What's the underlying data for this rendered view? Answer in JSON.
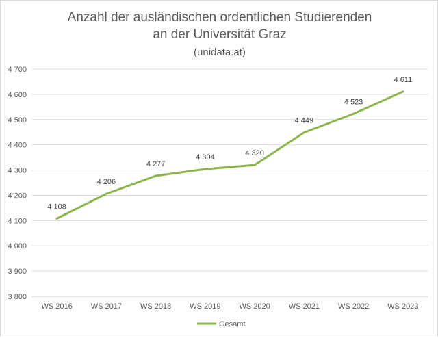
{
  "chart_data": {
    "type": "line",
    "title_lines": [
      "Anzahl der ausländischen ordentlichen Studierenden",
      "an der Universität Graz"
    ],
    "subtitle": "(unidata.at)",
    "categories": [
      "WS 2016",
      "WS 2017",
      "WS 2018",
      "WS 2019",
      "WS 2020",
      "WS 2021",
      "WS 2022",
      "WS 2023"
    ],
    "series": [
      {
        "name": "Gesamt",
        "values": [
          4108,
          4206,
          4277,
          4304,
          4320,
          4449,
          4523,
          4611
        ],
        "labels": [
          "4 108",
          "4 206",
          "4 277",
          "4 304",
          "4 320",
          "4 449",
          "4 523",
          "4 611"
        ],
        "color": "#8db44a"
      }
    ],
    "yticks": [
      {
        "value": 3800,
        "label": "3 800"
      },
      {
        "value": 3900,
        "label": "3 900"
      },
      {
        "value": 4000,
        "label": "4 000"
      },
      {
        "value": 4100,
        "label": "4 100"
      },
      {
        "value": 4200,
        "label": "4 200"
      },
      {
        "value": 4300,
        "label": "4 300"
      },
      {
        "value": 4400,
        "label": "4 400"
      },
      {
        "value": 4500,
        "label": "4 500"
      },
      {
        "value": 4600,
        "label": "4 600"
      },
      {
        "value": 4700,
        "label": "4 700"
      }
    ],
    "ylim": [
      3800,
      4700
    ],
    "grid": true,
    "legend_position": "bottom",
    "xlabel": "",
    "ylabel": ""
  },
  "colors": {
    "grid": "#d9d9d9",
    "axis": "#bfbfbf",
    "text": "#595959"
  }
}
